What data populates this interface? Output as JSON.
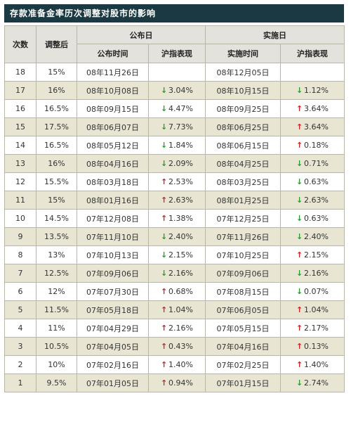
{
  "title": "存款准备金率历次调整对股市的影响",
  "headers": {
    "col_index": "次数",
    "col_rate": "调整后",
    "group_announce": "公布日",
    "group_implement": "实施日",
    "announce_time": "公布时间",
    "announce_perf": "沪指表现",
    "implement_time": "实施时间",
    "implement_perf": "沪指表现"
  },
  "colors": {
    "up": "#d02020",
    "down": "#2a9a2a"
  },
  "rows": [
    {
      "n": "18",
      "rate": "15%",
      "a_date": "08年11月26日",
      "a_dir": "",
      "a_val": "",
      "i_date": "08年12月05日",
      "i_dir": "",
      "i_val": ""
    },
    {
      "n": "17",
      "rate": "16%",
      "a_date": "08年10月08日",
      "a_dir": "down",
      "a_val": "3.04%",
      "i_date": "08年10月15日",
      "i_dir": "down",
      "i_val": "1.12%"
    },
    {
      "n": "16",
      "rate": "16.5%",
      "a_date": "08年09月15日",
      "a_dir": "down",
      "a_val": "4.47%",
      "i_date": "08年09月25日",
      "i_dir": "up",
      "i_val": "3.64%"
    },
    {
      "n": "15",
      "rate": "17.5%",
      "a_date": "08年06月07日",
      "a_dir": "down",
      "a_val": "7.73%",
      "i_date": "08年06月25日",
      "i_dir": "up",
      "i_val": "3.64%"
    },
    {
      "n": "14",
      "rate": "16.5%",
      "a_date": "08年05月12日",
      "a_dir": "down",
      "a_val": "1.84%",
      "i_date": "08年06月15日",
      "i_dir": "up",
      "i_val": "0.18%"
    },
    {
      "n": "13",
      "rate": "16%",
      "a_date": "08年04月16日",
      "a_dir": "down",
      "a_val": "2.09%",
      "i_date": "08年04月25日",
      "i_dir": "down",
      "i_val": "0.71%"
    },
    {
      "n": "12",
      "rate": "15.5%",
      "a_date": "08年03月18日",
      "a_dir": "up",
      "a_val": "2.53%",
      "i_date": "08年03月25日",
      "i_dir": "down",
      "i_val": "0.63%"
    },
    {
      "n": "11",
      "rate": "15%",
      "a_date": "08年01月16日",
      "a_dir": "up",
      "a_val": "2.63%",
      "i_date": "08年01月25日",
      "i_dir": "down",
      "i_val": "2.63%"
    },
    {
      "n": "10",
      "rate": "14.5%",
      "a_date": "07年12月08日",
      "a_dir": "up",
      "a_val": "1.38%",
      "i_date": "07年12月25日",
      "i_dir": "down",
      "i_val": "0.63%"
    },
    {
      "n": "9",
      "rate": "13.5%",
      "a_date": "07年11月10日",
      "a_dir": "down",
      "a_val": "2.40%",
      "i_date": "07年11月26日",
      "i_dir": "down",
      "i_val": "2.40%"
    },
    {
      "n": "8",
      "rate": "13%",
      "a_date": "07年10月13日",
      "a_dir": "down",
      "a_val": "2.15%",
      "i_date": "07年10月25日",
      "i_dir": "up",
      "i_val": "2.15%"
    },
    {
      "n": "7",
      "rate": "12.5%",
      "a_date": "07年09月06日",
      "a_dir": "down",
      "a_val": "2.16%",
      "i_date": "07年09月06日",
      "i_dir": "down",
      "i_val": "2.16%"
    },
    {
      "n": "6",
      "rate": "12%",
      "a_date": "07年07月30日",
      "a_dir": "up",
      "a_val": "0.68%",
      "i_date": "07年08月15日",
      "i_dir": "down",
      "i_val": "0.07%"
    },
    {
      "n": "5",
      "rate": "11.5%",
      "a_date": "07年05月18日",
      "a_dir": "up",
      "a_val": "1.04%",
      "i_date": "07年06月05日",
      "i_dir": "up",
      "i_val": "1.04%"
    },
    {
      "n": "4",
      "rate": "11%",
      "a_date": "07年04月29日",
      "a_dir": "up",
      "a_val": "2.16%",
      "i_date": "07年05月15日",
      "i_dir": "up",
      "i_val": "2.17%"
    },
    {
      "n": "3",
      "rate": "10.5%",
      "a_date": "07年04月05日",
      "a_dir": "up",
      "a_val": "0.43%",
      "i_date": "07年04月16日",
      "i_dir": "up",
      "i_val": "0.13%"
    },
    {
      "n": "2",
      "rate": "10%",
      "a_date": "07年02月16日",
      "a_dir": "up",
      "a_val": "1.40%",
      "i_date": "07年02月25日",
      "i_dir": "up",
      "i_val": "1.40%"
    },
    {
      "n": "1",
      "rate": "9.5%",
      "a_date": "07年01月05日",
      "a_dir": "up",
      "a_val": "0.94%",
      "i_date": "07年01月15日",
      "i_dir": "down",
      "i_val": "2.74%"
    }
  ]
}
